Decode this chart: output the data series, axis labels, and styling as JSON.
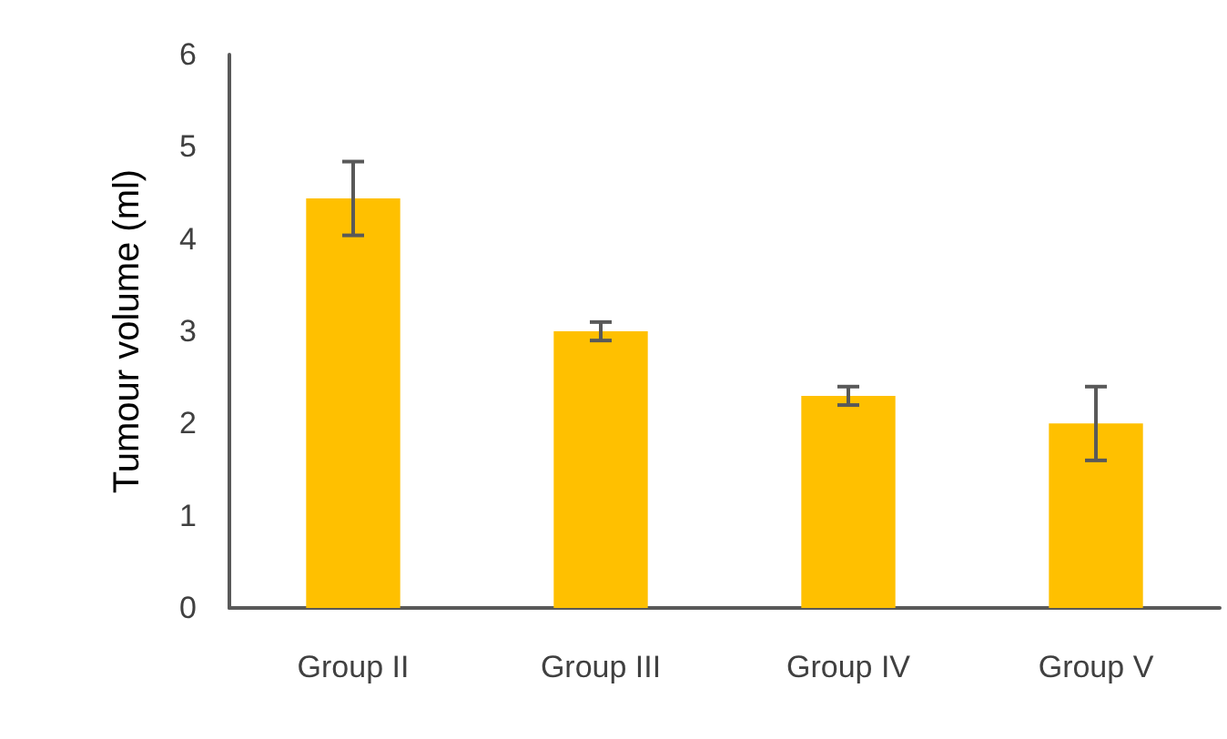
{
  "chart_data": {
    "type": "bar",
    "ylabel": "Tumour volume (ml)",
    "categories": [
      "Group II",
      "Group III",
      "Group IV",
      "Group V"
    ],
    "values": [
      4.44,
      3.0,
      2.3,
      2.0
    ],
    "errors": [
      0.4,
      0.1,
      0.1,
      0.4
    ],
    "color": "#ffc000",
    "ylim": [
      0,
      6
    ],
    "yticks": [
      0,
      1,
      2,
      3,
      4,
      5,
      6
    ],
    "grid": false
  }
}
